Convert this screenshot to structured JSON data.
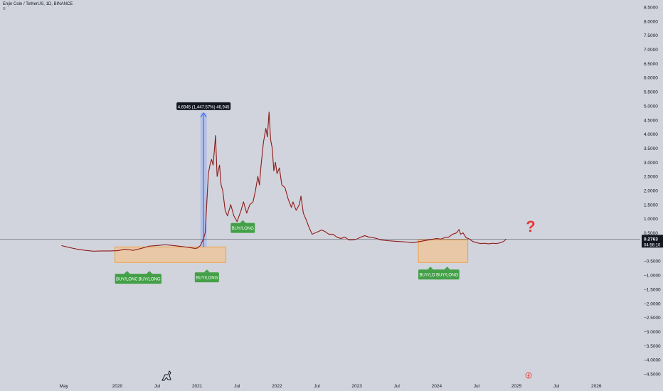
{
  "header": {
    "title": "Enjin Coin / TetherUS, 1D, BINANCE",
    "menu_glyph": "≡"
  },
  "colors": {
    "background": "#d1d4dc",
    "price_line": "#1a1a1a",
    "candle_up": "#1a1a1a",
    "candle_down": "#d32f2f",
    "zone_fill": "#f5c28a",
    "zone_border": "#f0a040",
    "buy_tag": "#43a047",
    "measure": "#2962ff",
    "question": "#e53935",
    "price_label_bg": "#131722"
  },
  "chart_data": {
    "type": "line",
    "title": "Enjin Coin / TetherUS, 1D, BINANCE",
    "xlabel": "",
    "ylabel": "",
    "y_ticks": [
      "8.5000",
      "8.0000",
      "7.5000",
      "7.0000",
      "6.5000",
      "6.0000",
      "5.5000",
      "5.0000",
      "4.5000",
      "4.0000",
      "3.5000",
      "3.0000",
      "2.5000",
      "2.0000",
      "1.5000",
      "1.0000",
      "0.5000",
      "−0.5000",
      "−1.0000",
      "−1.5000",
      "−2.0000",
      "−2.5000",
      "−3.0000",
      "−3.5000",
      "−4.0000",
      "−4.5000"
    ],
    "x_ticks": [
      {
        "label": "May",
        "t": 2019.33
      },
      {
        "label": "2020",
        "t": 2020.0
      },
      {
        "label": "Jul",
        "t": 2020.5
      },
      {
        "label": "2021",
        "t": 2021.0
      },
      {
        "label": "Jul",
        "t": 2021.5
      },
      {
        "label": "2022",
        "t": 2022.0
      },
      {
        "label": "Jul",
        "t": 2022.5
      },
      {
        "label": "2023",
        "t": 2023.0
      },
      {
        "label": "Jul",
        "t": 2023.5
      },
      {
        "label": "2024",
        "t": 2024.0
      },
      {
        "label": "Jul",
        "t": 2024.5
      },
      {
        "label": "2025",
        "t": 2025.0
      },
      {
        "label": "Jul",
        "t": 2025.5
      },
      {
        "label": "2026",
        "t": 2026.0
      }
    ],
    "ylim": [
      -4.6,
      8.6
    ],
    "xlim": [
      2018.53,
      2026.55
    ],
    "series": [
      {
        "points": [
          [
            2019.3,
            0.05
          ],
          [
            2019.4,
            -0.02
          ],
          [
            2019.5,
            -0.08
          ],
          [
            2019.6,
            -0.12
          ],
          [
            2019.7,
            -0.15
          ],
          [
            2019.8,
            -0.14
          ],
          [
            2019.9,
            -0.14
          ],
          [
            2020.0,
            -0.13
          ],
          [
            2020.1,
            -0.08
          ],
          [
            2020.2,
            -0.12
          ],
          [
            2020.3,
            -0.05
          ],
          [
            2020.4,
            0.03
          ],
          [
            2020.5,
            0.05
          ],
          [
            2020.6,
            0.08
          ],
          [
            2020.7,
            0.05
          ],
          [
            2020.8,
            0.02
          ],
          [
            2020.9,
            -0.02
          ],
          [
            2020.97,
            -0.05
          ],
          [
            2021.0,
            -0.04
          ],
          [
            2021.04,
            0.05
          ],
          [
            2021.08,
            0.3
          ],
          [
            2021.1,
            0.5
          ],
          [
            2021.12,
            1.5
          ],
          [
            2021.14,
            2.6
          ],
          [
            2021.16,
            2.9
          ],
          [
            2021.18,
            3.1
          ],
          [
            2021.2,
            2.9
          ],
          [
            2021.22,
            3.6
          ],
          [
            2021.23,
            3.95
          ],
          [
            2021.25,
            2.5
          ],
          [
            2021.28,
            2.9
          ],
          [
            2021.3,
            2.2
          ],
          [
            2021.32,
            2.0
          ],
          [
            2021.35,
            1.3
          ],
          [
            2021.38,
            1.1
          ],
          [
            2021.42,
            1.5
          ],
          [
            2021.46,
            1.1
          ],
          [
            2021.5,
            0.9
          ],
          [
            2021.55,
            1.3
          ],
          [
            2021.58,
            1.6
          ],
          [
            2021.62,
            1.2
          ],
          [
            2021.66,
            1.5
          ],
          [
            2021.7,
            1.6
          ],
          [
            2021.73,
            2.0
          ],
          [
            2021.76,
            2.5
          ],
          [
            2021.78,
            2.2
          ],
          [
            2021.8,
            2.9
          ],
          [
            2021.83,
            3.7
          ],
          [
            2021.86,
            4.2
          ],
          [
            2021.88,
            3.9
          ],
          [
            2021.9,
            4.78
          ],
          [
            2021.92,
            3.8
          ],
          [
            2021.94,
            3.5
          ],
          [
            2021.96,
            2.7
          ],
          [
            2021.98,
            3.0
          ],
          [
            2022.0,
            2.6
          ],
          [
            2022.03,
            2.8
          ],
          [
            2022.06,
            2.2
          ],
          [
            2022.1,
            2.1
          ],
          [
            2022.14,
            1.7
          ],
          [
            2022.18,
            1.4
          ],
          [
            2022.2,
            1.6
          ],
          [
            2022.24,
            1.3
          ],
          [
            2022.28,
            1.5
          ],
          [
            2022.3,
            1.8
          ],
          [
            2022.33,
            1.2
          ],
          [
            2022.36,
            1.0
          ],
          [
            2022.4,
            0.7
          ],
          [
            2022.44,
            0.45
          ],
          [
            2022.48,
            0.5
          ],
          [
            2022.52,
            0.55
          ],
          [
            2022.56,
            0.6
          ],
          [
            2022.6,
            0.55
          ],
          [
            2022.65,
            0.45
          ],
          [
            2022.7,
            0.45
          ],
          [
            2022.75,
            0.35
          ],
          [
            2022.8,
            0.3
          ],
          [
            2022.85,
            0.35
          ],
          [
            2022.9,
            0.25
          ],
          [
            2022.95,
            0.25
          ],
          [
            2023.0,
            0.28
          ],
          [
            2023.05,
            0.35
          ],
          [
            2023.1,
            0.4
          ],
          [
            2023.15,
            0.35
          ],
          [
            2023.2,
            0.33
          ],
          [
            2023.25,
            0.3
          ],
          [
            2023.3,
            0.25
          ],
          [
            2023.4,
            0.22
          ],
          [
            2023.5,
            0.2
          ],
          [
            2023.6,
            0.18
          ],
          [
            2023.7,
            0.15
          ],
          [
            2023.8,
            0.2
          ],
          [
            2023.9,
            0.25
          ],
          [
            2024.0,
            0.3
          ],
          [
            2024.05,
            0.28
          ],
          [
            2024.1,
            0.33
          ],
          [
            2024.15,
            0.35
          ],
          [
            2024.2,
            0.45
          ],
          [
            2024.25,
            0.5
          ],
          [
            2024.28,
            0.62
          ],
          [
            2024.3,
            0.45
          ],
          [
            2024.33,
            0.5
          ],
          [
            2024.37,
            0.32
          ],
          [
            2024.4,
            0.3
          ],
          [
            2024.45,
            0.2
          ],
          [
            2024.5,
            0.15
          ],
          [
            2024.55,
            0.12
          ],
          [
            2024.6,
            0.13
          ],
          [
            2024.65,
            0.11
          ],
          [
            2024.7,
            0.13
          ],
          [
            2024.75,
            0.12
          ],
          [
            2024.8,
            0.15
          ],
          [
            2024.84,
            0.2
          ],
          [
            2024.87,
            0.28
          ]
        ]
      }
    ],
    "current_price": "0.2763",
    "countdown": "04:56:10",
    "measure": {
      "label": "4.6945 (1,447.57%) 46,945",
      "t": 2021.04,
      "t_end": 2021.12,
      "from": 0.0,
      "to": 4.75
    },
    "zones": [
      {
        "t0": 2019.97,
        "t1": 2021.36,
        "y0": -0.55,
        "y1": 0.0
      },
      {
        "t0": 2023.77,
        "t1": 2024.39,
        "y0": -0.55,
        "y1": 0.25
      }
    ],
    "tags": [
      {
        "label": "BUY/LONG",
        "t": 2019.97,
        "y": -0.95
      },
      {
        "label": "BUY/LONG",
        "t": 2020.25,
        "y": -0.95
      },
      {
        "label": "BUY/LONG",
        "t": 2020.97,
        "y": -0.9
      },
      {
        "label": "BUY/LONG",
        "t": 2021.42,
        "y": 0.85
      },
      {
        "label": "BUY/LONG",
        "t": 2023.77,
        "y": -0.8
      },
      {
        "label": "BUY/LONG",
        "t": 2023.98,
        "y": -0.8
      }
    ],
    "question_mark": "?"
  }
}
